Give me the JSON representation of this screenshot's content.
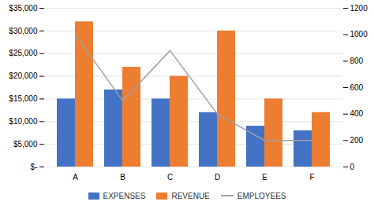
{
  "chart_data": {
    "type": "bar",
    "categories": [
      "A",
      "B",
      "C",
      "D",
      "E",
      "F"
    ],
    "series": [
      {
        "name": "EXPENSES",
        "type": "bar",
        "color": "#4472C4",
        "values": [
          15000,
          17000,
          15000,
          12000,
          9000,
          8000
        ]
      },
      {
        "name": "REVENUE",
        "type": "bar",
        "color": "#ED7D31",
        "values": [
          32000,
          22000,
          20000,
          30000,
          15000,
          12000
        ]
      },
      {
        "name": "EMPLOYEES",
        "type": "line",
        "axis": "y2",
        "color": "#A0A0A0",
        "values": [
          1000,
          500,
          880,
          400,
          200,
          200
        ]
      }
    ],
    "ylim": [
      0,
      35000
    ],
    "yticks": [
      {
        "value": 0,
        "label": "$-"
      },
      {
        "value": 5000,
        "label": "$5,000"
      },
      {
        "value": 10000,
        "label": "$10,000"
      },
      {
        "value": 15000,
        "label": "$15,000"
      },
      {
        "value": 20000,
        "label": "$20,000"
      },
      {
        "value": 25000,
        "label": "$25,000"
      },
      {
        "value": 30000,
        "label": "$30,000"
      },
      {
        "value": 35000,
        "label": "$35,000"
      }
    ],
    "y2lim": [
      0,
      1200
    ],
    "y2ticks": [
      0,
      200,
      400,
      600,
      800,
      1000,
      1200
    ],
    "grid": true,
    "legend": "bottom"
  }
}
